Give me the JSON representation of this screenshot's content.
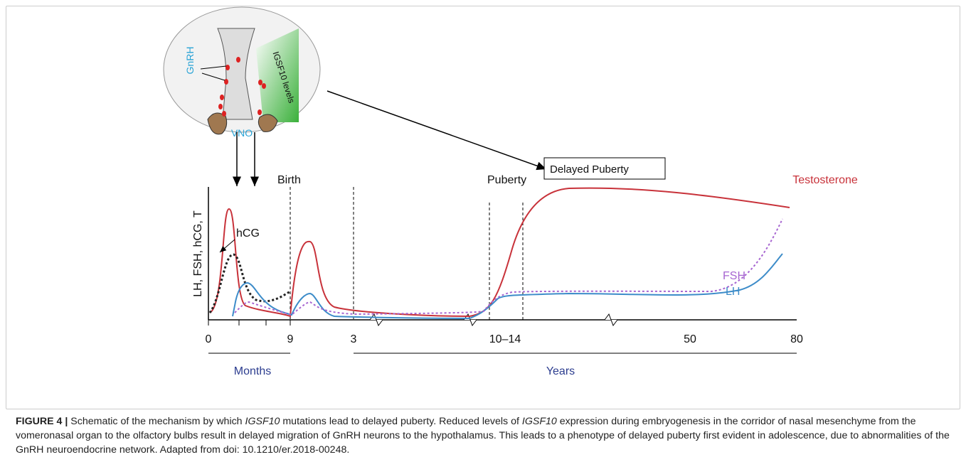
{
  "figure": {
    "inset": {
      "gnrh": "GnRH",
      "igsf10": "IGSF10 levels",
      "vno": "VNO"
    },
    "callout": "Delayed Puberty",
    "markers": {
      "birth": "Birth",
      "puberty": "Puberty"
    },
    "y_label": "LH, FSH, hCG, T",
    "curve_labels": {
      "testosterone": "Testosterone",
      "hcg": "hCG",
      "fsh": "FSH",
      "lh": "LH"
    },
    "ticks": [
      "0",
      "9",
      "3",
      "10–14",
      "50",
      "80"
    ],
    "periods": {
      "months": "Months",
      "years": "Years"
    }
  },
  "caption": {
    "label": "FIGURE 4 |",
    "segments": [
      {
        "text": " Schematic of the mechanism by which "
      },
      {
        "text": "IGSF10",
        "italic": true
      },
      {
        "text": " mutations lead to delayed puberty. Reduced levels of "
      },
      {
        "text": "IGSF10",
        "italic": true
      },
      {
        "text": " expression during embryogenesis in the corridor of nasal mesenchyme from the vomeronasal organ to the olfactory bulbs result in delayed migration of GnRH neurons to the hypothalamus. This leads to a phenotype of delayed puberty first evident in adolescence, due to abnormalities of the GnRH neuroendocrine network. Adapted from doi: 10.1210/er.2018-00248."
      }
    ]
  }
}
